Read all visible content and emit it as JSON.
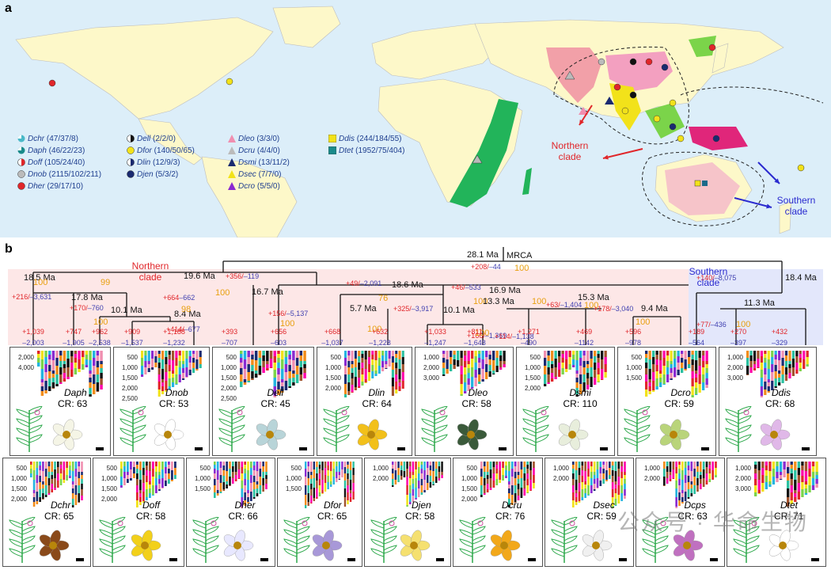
{
  "panel_a_label": "a",
  "panel_b_label": "b",
  "map": {
    "northern_clade_label": "Northern\nclade",
    "southern_clade_label": "Southern\nclade",
    "legend": [
      {
        "species": "Dchr",
        "counts": "(47/37/8)",
        "symbol": "pie-cyan"
      },
      {
        "species": "Daph",
        "counts": "(46/22/23)",
        "symbol": "pie-teal"
      },
      {
        "species": "Doff",
        "counts": "(105/24/40)",
        "symbol": "half-red"
      },
      {
        "species": "Dnob",
        "counts": "(2115/102/211)",
        "symbol": "circle-grey"
      },
      {
        "species": "Dher",
        "counts": "(29/17/10)",
        "symbol": "circle-red"
      },
      {
        "species": "Dell",
        "counts": "(2/2/0)",
        "symbol": "half-black"
      },
      {
        "species": "Dfor",
        "counts": "(140/50/65)",
        "symbol": "circle-yellow"
      },
      {
        "species": "Dlin",
        "counts": "(12/9/3)",
        "symbol": "half-navy"
      },
      {
        "species": "Djen",
        "counts": "(5/3/2)",
        "symbol": "circle-navy"
      },
      {
        "species": "Dleo",
        "counts": "(3/3/0)",
        "symbol": "tri-pink"
      },
      {
        "species": "Dcru",
        "counts": "(4/4/0)",
        "symbol": "tri-grey"
      },
      {
        "species": "Dsmi",
        "counts": "(13/11/2)",
        "symbol": "tri-navy"
      },
      {
        "species": "Dsec",
        "counts": "(7/7/0)",
        "symbol": "tri-yellow"
      },
      {
        "species": "Dcro",
        "counts": "(5/5/0)",
        "symbol": "tri-purple"
      },
      {
        "species": "Ddis",
        "counts": "(244/184/55)",
        "symbol": "sq-yellow"
      },
      {
        "species": "Dtet",
        "counts": "(1952/75/404)",
        "symbol": "sq-teal"
      }
    ]
  },
  "tree": {
    "root_label": "MRCA",
    "northern_clade_label": "Northern\nclade",
    "southern_clade_label": "Southern\nclade",
    "nodes": [
      {
        "age": "28.1 Ma",
        "gain": "+208/",
        "loss": "–44",
        "support": "100"
      },
      {
        "age": "19.6 Ma",
        "gain": "+356/",
        "loss": "–119",
        "support": "100"
      },
      {
        "age": "18.4 Ma",
        "gain": "+140/",
        "loss": "–8,075",
        "support": ""
      },
      {
        "age": "18.5 Ma",
        "gain": "+216/",
        "loss": "–3,631",
        "support": "100"
      },
      {
        "age": "17.8 Ma",
        "gain": "+170/",
        "loss": "–760",
        "support": "99"
      },
      {
        "age": "10.1 Ma",
        "gain": "+664",
        "loss": "–662",
        "support": "100"
      },
      {
        "age": "8.4 Ma",
        "gain": "+414/",
        "loss": "–677",
        "support": "98"
      },
      {
        "age": "16.7 Ma",
        "gain": "+156/",
        "loss": "–5,137",
        "support": "100"
      },
      {
        "age": "18.6 Ma",
        "gain": "+49/",
        "loss": "–2,091",
        "support": "76"
      },
      {
        "age": "5.7 Ma",
        "gain": "+325/",
        "loss": "–3,917",
        "support": "100"
      },
      {
        "age": "16.9 Ma",
        "gain": "+46/",
        "loss": "–533",
        "support": "100"
      },
      {
        "age": "10.1 Ma",
        "gain": "+166/",
        "loss": "–1,369",
        "support": "100"
      },
      {
        "age": "13.3 Ma",
        "gain": "+114/",
        "loss": "–1,138",
        "support": "100"
      },
      {
        "age": "15.3 Ma",
        "gain": "+63/",
        "loss": "–1,404",
        "support": "100"
      },
      {
        "age": "9.4 Ma",
        "gain": "+178/",
        "loss": "–3,040",
        "support": "100"
      },
      {
        "age": "11.3 Ma",
        "gain": "+77/",
        "loss": "–436",
        "support": "100"
      }
    ],
    "tips": [
      {
        "gain": "+1,039",
        "loss": "–2,003"
      },
      {
        "gain": "+747",
        "loss": "–1,905"
      },
      {
        "gain": "+962",
        "loss": "–2,538"
      },
      {
        "gain": "+909",
        "loss": "–1,537"
      },
      {
        "gain": "+1,188",
        "loss": "–1,232"
      },
      {
        "gain": "+393",
        "loss": "–707"
      },
      {
        "gain": "+656",
        "loss": "–603"
      },
      {
        "gain": "+668",
        "loss": "–1,037"
      },
      {
        "gain": "+632",
        "loss": "–1,228"
      },
      {
        "gain": "+1,033",
        "loss": "–1,247"
      },
      {
        "gain": "+811",
        "loss": "–1,648"
      },
      {
        "gain": "+1,271",
        "loss": "–490"
      },
      {
        "gain": "+469",
        "loss": "–1142"
      },
      {
        "gain": "+596",
        "loss": "–978"
      },
      {
        "gain": "+189",
        "loss": "–564"
      },
      {
        "gain": "+270",
        "loss": "–397"
      },
      {
        "gain": "+432",
        "loss": "–329"
      }
    ]
  },
  "panels_row1": [
    {
      "species": "Daph",
      "cr": "CR: 63",
      "yticks": [
        "2,000",
        "4,000"
      ]
    },
    {
      "species": "Dnob",
      "cr": "CR: 53",
      "yticks": [
        "500",
        "1,000",
        "1,500",
        "2,000",
        "2,500"
      ]
    },
    {
      "species": "Dell",
      "cr": "CR: 45",
      "yticks": [
        "500",
        "1,000",
        "1,500",
        "2,000",
        "2,500"
      ]
    },
    {
      "species": "Dlin",
      "cr": "CR: 64",
      "yticks": [
        "500",
        "1,000",
        "1,500",
        "2,000"
      ]
    },
    {
      "species": "Dleo",
      "cr": "CR: 58",
      "yticks": [
        "1,000",
        "2,000",
        "3,000"
      ]
    },
    {
      "species": "Dsmi",
      "cr": "CR: 110",
      "yticks": [
        "500",
        "1,000",
        "1,500",
        "2,000"
      ]
    },
    {
      "species": "Dcro",
      "cr": "CR: 59",
      "yticks": [
        "500",
        "1,000",
        "1,500"
      ]
    },
    {
      "species": "Ddis",
      "cr": "CR: 68",
      "yticks": [
        "1,000",
        "2,000",
        "3,000"
      ]
    }
  ],
  "panels_row2": [
    {
      "species": "Dchr",
      "cr": "CR: 65",
      "yticks": [
        "500",
        "1,000",
        "1,500",
        "2,000"
      ]
    },
    {
      "species": "Doff",
      "cr": "CR: 58",
      "yticks": [
        "500",
        "1,000",
        "1,500",
        "2,000"
      ]
    },
    {
      "species": "Dher",
      "cr": "CR: 66",
      "yticks": [
        "500",
        "1,000",
        "1,500"
      ]
    },
    {
      "species": "Dfor",
      "cr": "CR: 65",
      "yticks": [
        "500",
        "1,000",
        "1,500"
      ]
    },
    {
      "species": "Djen",
      "cr": "CR: 58",
      "yticks": [
        "1,000",
        "2,000"
      ]
    },
    {
      "species": "Dcru",
      "cr": "CR: 76",
      "yticks": [
        "500",
        "1,000",
        "1,500",
        "2,000"
      ]
    },
    {
      "species": "Dsec",
      "cr": "CR: 59",
      "yticks": [
        "1,000",
        "2,000"
      ]
    },
    {
      "species": "Dcps",
      "cr": "CR: 63",
      "yticks": [
        "1,000",
        "2,000"
      ]
    },
    {
      "species": "Dtet",
      "cr": "CR: 71",
      "yticks": [
        "1,000",
        "2,000",
        "3,000"
      ]
    }
  ],
  "watermark": "公众号 · 华命生物",
  "colors": {
    "ocean": "#dceef9",
    "land": "#fdf8c9",
    "africa": "#22b45a",
    "gain": "#e0262a",
    "loss": "#3f3fb0",
    "support": "#e8a010",
    "northern": "#e0262a",
    "southern": "#2b2bcf",
    "arrow_red": "#e0262a",
    "arrow_blue": "#2b2bcf"
  }
}
